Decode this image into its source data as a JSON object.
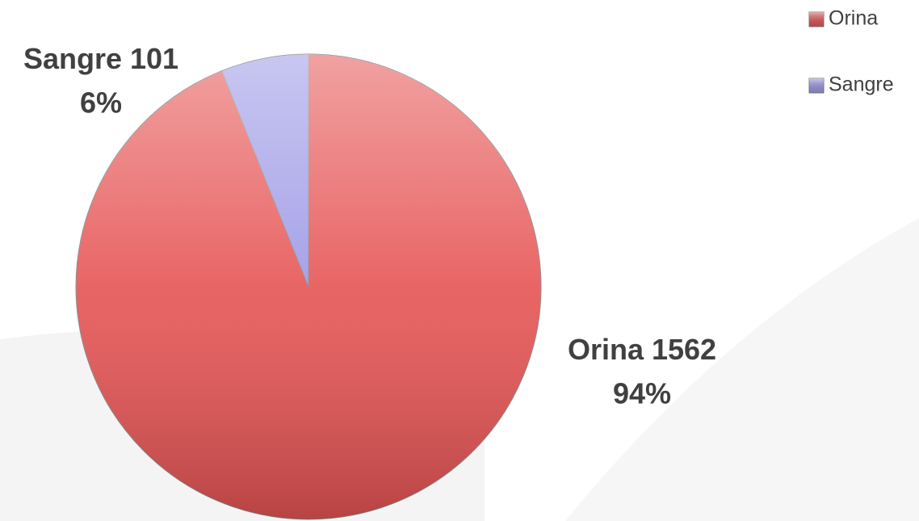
{
  "chart_data": {
    "type": "pie",
    "categories": [
      "Orina",
      "Sangre"
    ],
    "values": [
      1562,
      101
    ],
    "percentages": [
      94,
      6
    ],
    "percentage_labels": [
      "94%",
      "6%"
    ],
    "colors": [
      "#e65454",
      "#9c98e6"
    ],
    "legend": "top-right"
  }
}
